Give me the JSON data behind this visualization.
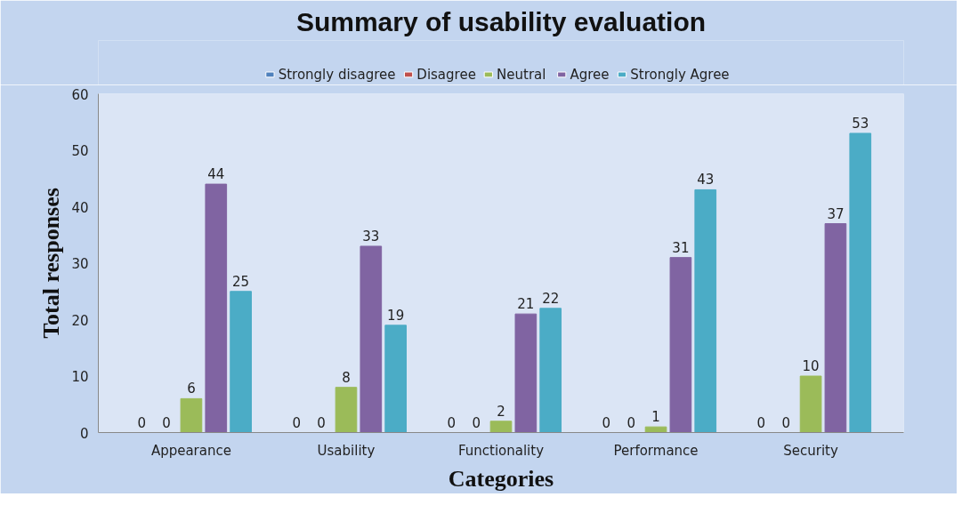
{
  "chart_data": {
    "type": "bar",
    "title": "Summary of usability evaluation",
    "xlabel": "Categories",
    "ylabel": "Total responses",
    "categories": [
      "Appearance",
      "Usability",
      "Functionality",
      "Performance",
      "Security"
    ],
    "series": [
      {
        "name": "Strongly disagree",
        "color": "#4f81bd",
        "values": [
          0,
          0,
          0,
          0,
          0
        ]
      },
      {
        "name": "Disagree",
        "color": "#c0504d",
        "values": [
          0,
          0,
          0,
          0,
          0
        ]
      },
      {
        "name": "Neutral",
        "color": "#9bbb59",
        "values": [
          6,
          8,
          2,
          1,
          10
        ]
      },
      {
        "name": "Agree",
        "color": "#8064a2",
        "values": [
          44,
          33,
          21,
          31,
          37
        ]
      },
      {
        "name": "Strongly Agree",
        "color": "#4bacc6",
        "values": [
          25,
          19,
          22,
          43,
          53
        ]
      }
    ],
    "ylim": [
      0,
      60
    ],
    "yticks": [
      0,
      10,
      20,
      30,
      40,
      50,
      60
    ],
    "grid": false,
    "legend": "top",
    "data_labels": true
  }
}
